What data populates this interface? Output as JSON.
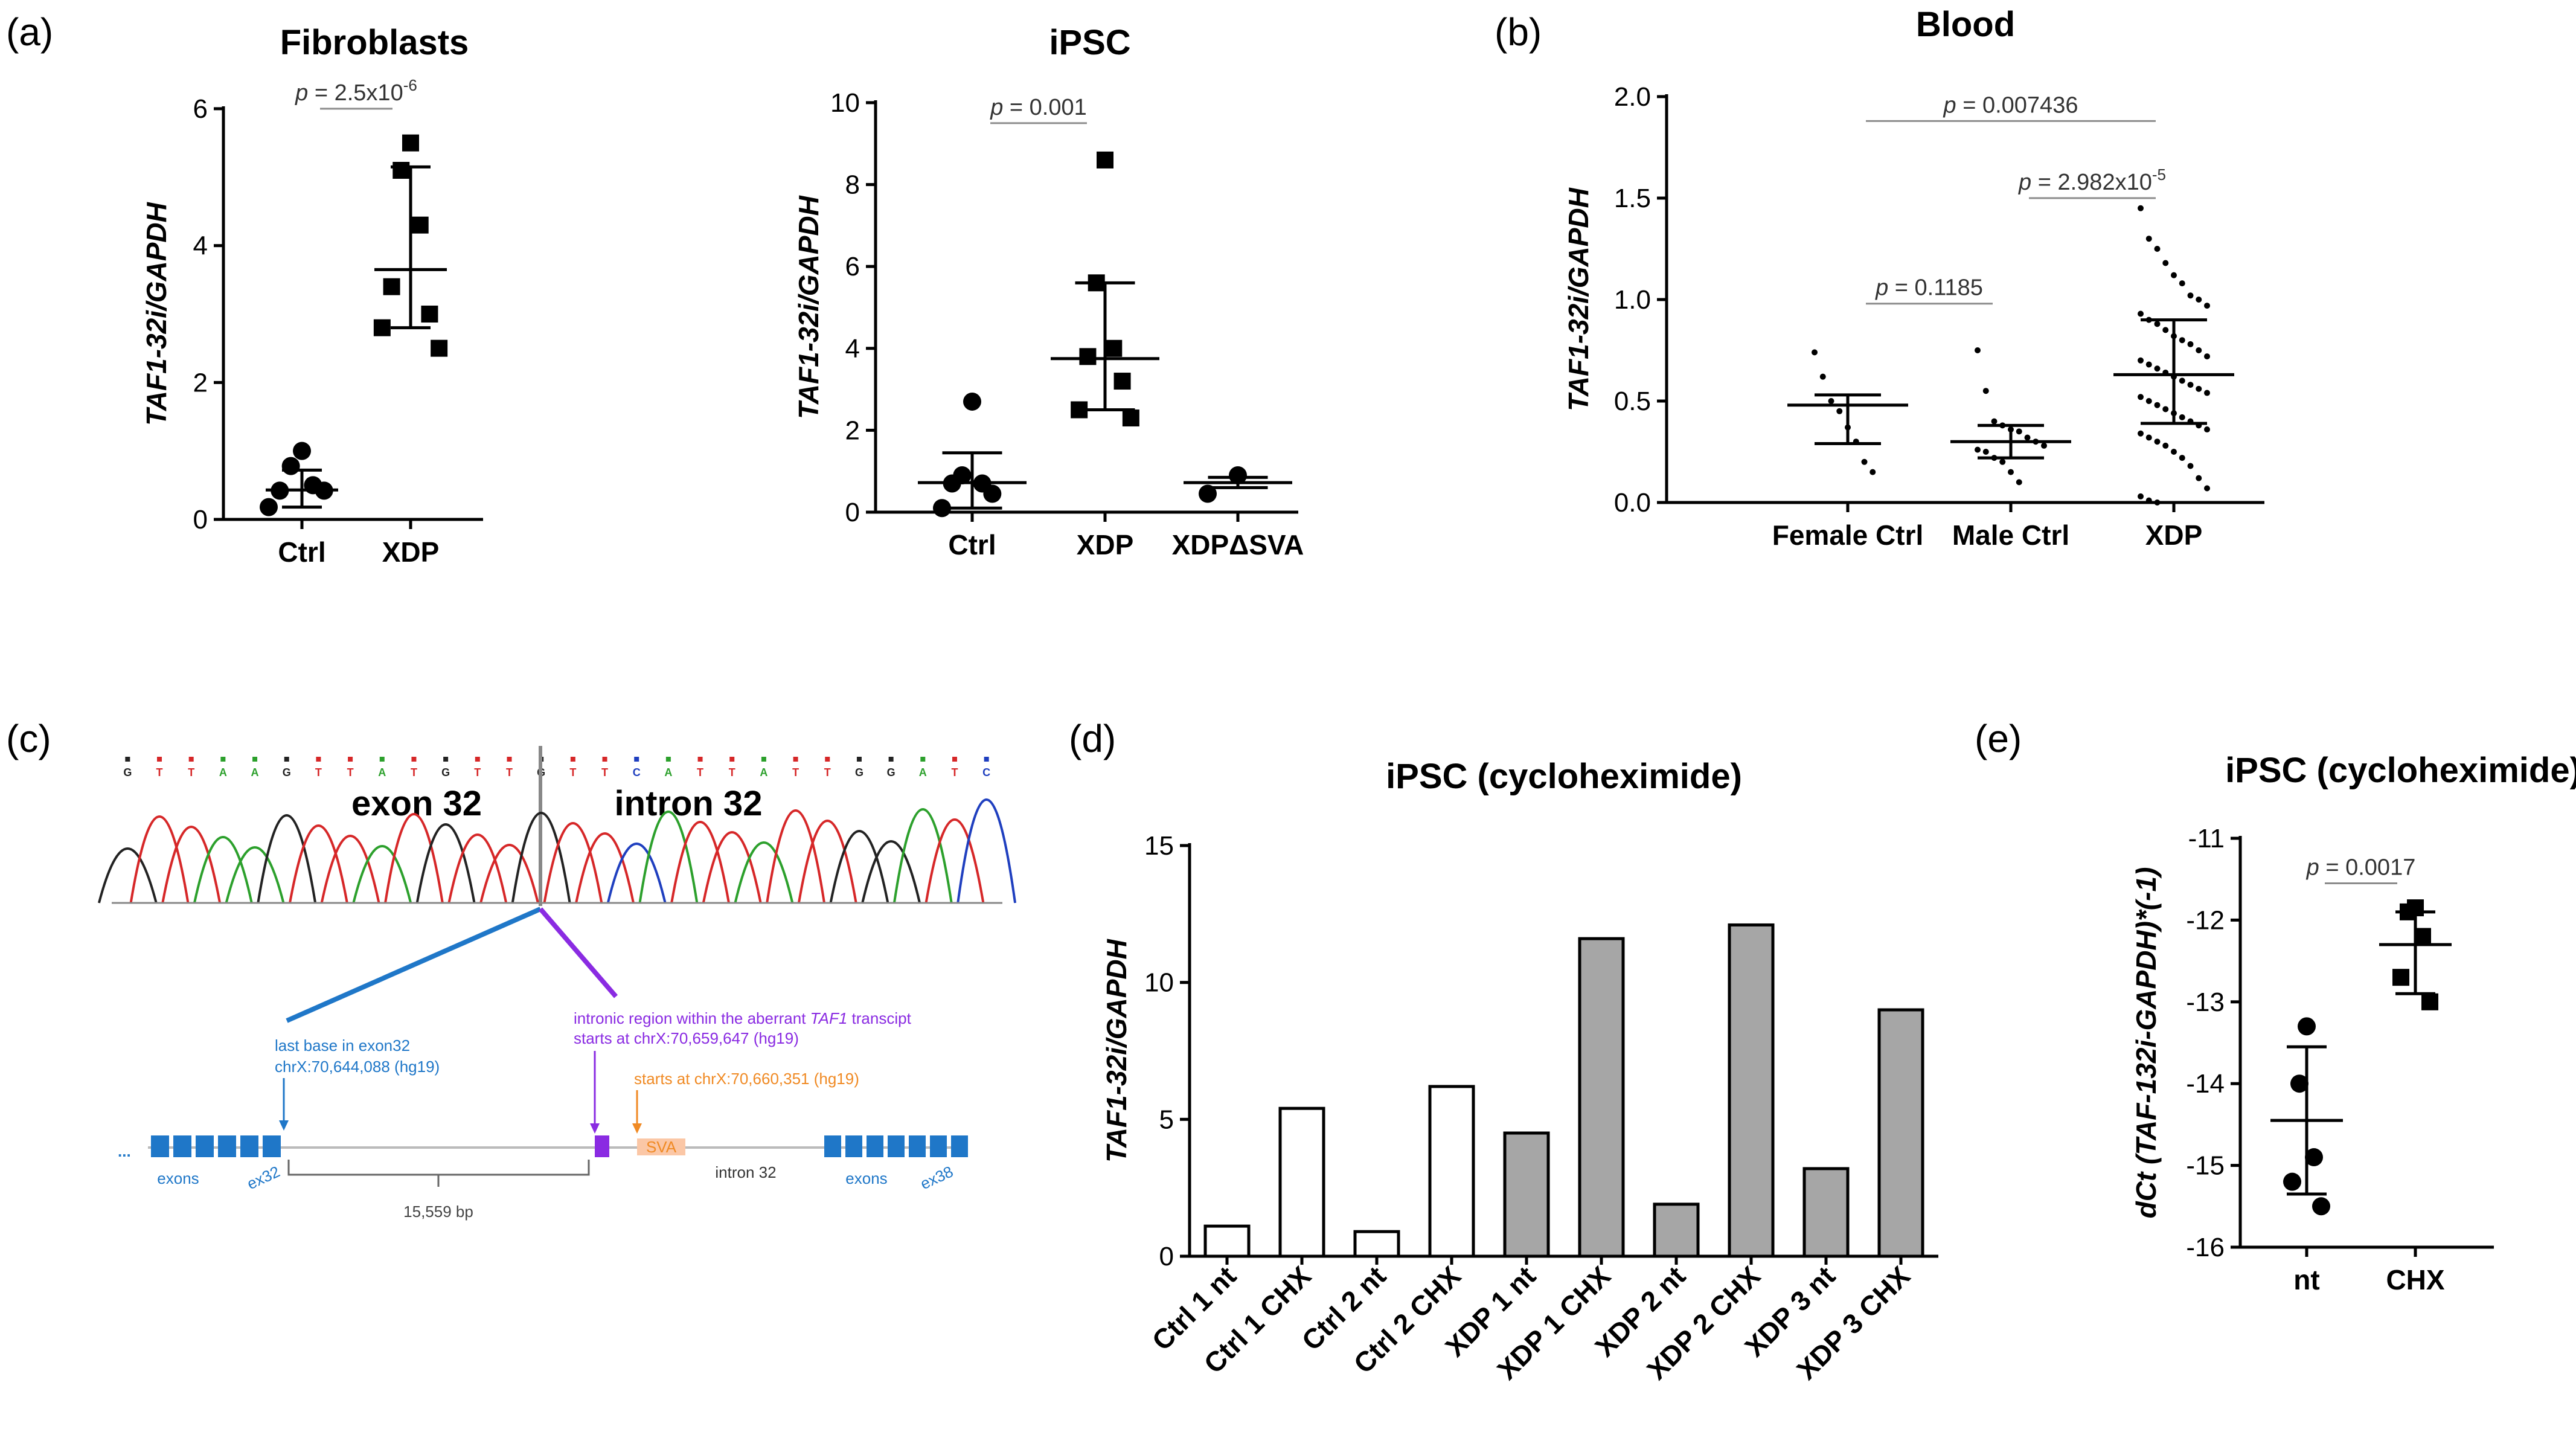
{
  "panels": {
    "a": {
      "label": "(a)"
    },
    "b": {
      "label": "(b)"
    },
    "c": {
      "label": "(c)",
      "exon_label": "exon 32",
      "intron_label": "intron 32",
      "bases": [
        "G",
        "T",
        "T",
        "A",
        "A",
        "G",
        "T",
        "T",
        "A",
        "T",
        "G",
        "T",
        "T",
        "G",
        "T",
        "T",
        "C",
        "A",
        "T",
        "T",
        "A",
        "T",
        "T",
        "G",
        "G",
        "A",
        "T",
        "C"
      ],
      "ann_blue_1": "last base in exon32",
      "ann_blue_2": "chrX:70,644,088 (hg19)",
      "ann_purple_1_a": "intronic region within the aberrant ",
      "ann_purple_1_b": "TAF1",
      "ann_purple_1_c": " transcipt",
      "ann_purple_2": "starts at chrX:70,659,647 (hg19)",
      "ann_orange": "starts at chrX:70,660,351 (hg19)",
      "dots": "...",
      "exons_left": "exons",
      "ex32": "ex32",
      "sva": "SVA",
      "intron": "intron 32",
      "exons_right": "exons",
      "ex38": "ex38",
      "bp": "15,559 bp"
    },
    "d": {
      "label": "(d)"
    },
    "e": {
      "label": "(e)"
    }
  },
  "chart_data": [
    {
      "id": "fibroblasts",
      "type": "scatter",
      "title": "Fibroblasts",
      "ylabel": "TAF1-32i/GAPDH",
      "ylim": [
        0,
        6
      ],
      "yticks": [
        0,
        2,
        4,
        6
      ],
      "categories": [
        "Ctrl",
        "XDP"
      ],
      "series": [
        {
          "name": "Ctrl",
          "marker": "circle",
          "values": [
            1.0,
            0.78,
            0.5,
            0.42,
            0.42,
            0.18
          ],
          "mean": 0.43,
          "sd_low": 0.18,
          "sd_high": 0.72
        },
        {
          "name": "XDP",
          "marker": "square",
          "values": [
            5.5,
            5.1,
            4.3,
            3.4,
            3.0,
            2.8,
            2.5
          ],
          "mean": 3.65,
          "sd_low": 2.8,
          "sd_high": 5.15
        }
      ],
      "annotations": [
        {
          "text_p": "p",
          "text": " = 2.5x10",
          "sup": "-6",
          "between": [
            "Ctrl",
            "XDP"
          ],
          "y": 6.0
        }
      ]
    },
    {
      "id": "ipsc",
      "type": "scatter",
      "title": "iPSC",
      "ylabel": "TAF1-32i/GAPDH",
      "ylim": [
        0,
        10
      ],
      "yticks": [
        0,
        2,
        4,
        6,
        8,
        10
      ],
      "categories": [
        "Ctrl",
        "XDP",
        "XDPΔSVA"
      ],
      "series": [
        {
          "name": "Ctrl",
          "marker": "circle",
          "values": [
            2.7,
            0.9,
            0.7,
            0.7,
            0.45,
            0.1
          ],
          "mean": 0.72,
          "sd_low": 0.1,
          "sd_high": 1.45
        },
        {
          "name": "XDP",
          "marker": "square",
          "values": [
            8.6,
            5.6,
            4.0,
            3.8,
            3.2,
            2.5,
            2.3
          ],
          "mean": 3.75,
          "sd_low": 2.5,
          "sd_high": 5.6
        },
        {
          "name": "XDPΔSVA",
          "marker": "circle",
          "values": [
            0.9,
            0.45
          ],
          "mean": 0.72,
          "sd_low": 0.6,
          "sd_high": 0.85
        }
      ],
      "annotations": [
        {
          "text_p": "p",
          "text": " = 0.001",
          "between": [
            "Ctrl",
            "XDP"
          ],
          "y": 9.5
        }
      ]
    },
    {
      "id": "blood",
      "type": "scatter",
      "title": "Blood",
      "ylabel": "TAF1-32i/GAPDH",
      "ylim": [
        0,
        2.0
      ],
      "yticks": [
        0.0,
        0.5,
        1.0,
        1.5,
        2.0
      ],
      "categories": [
        "Female Ctrl",
        "Male Ctrl",
        "XDP"
      ],
      "series": [
        {
          "name": "Female Ctrl",
          "marker": "dot",
          "values": [
            0.74,
            0.62,
            0.5,
            0.45,
            0.37,
            0.3,
            0.2,
            0.15
          ],
          "mean": 0.48,
          "sd_low": 0.29,
          "sd_high": 0.53
        },
        {
          "name": "Male Ctrl",
          "marker": "dot",
          "values": [
            0.75,
            0.55,
            0.4,
            0.38,
            0.36,
            0.35,
            0.32,
            0.3,
            0.28,
            0.26,
            0.25,
            0.22,
            0.2,
            0.15,
            0.1
          ],
          "mean": 0.3,
          "sd_low": 0.22,
          "sd_high": 0.38
        },
        {
          "name": "XDP",
          "marker": "dot",
          "values": [
            1.45,
            1.3,
            1.25,
            1.18,
            1.12,
            1.08,
            1.02,
            1.0,
            0.97,
            0.93,
            0.9,
            0.88,
            0.85,
            0.82,
            0.8,
            0.78,
            0.75,
            0.72,
            0.7,
            0.68,
            0.66,
            0.64,
            0.62,
            0.6,
            0.58,
            0.56,
            0.54,
            0.52,
            0.5,
            0.48,
            0.46,
            0.44,
            0.42,
            0.4,
            0.38,
            0.36,
            0.34,
            0.32,
            0.3,
            0.28,
            0.25,
            0.22,
            0.18,
            0.12,
            0.07,
            0.03,
            0.01,
            0.0
          ],
          "mean": 0.63,
          "sd_low": 0.39,
          "sd_high": 0.9
        }
      ],
      "annotations": [
        {
          "text_p": "p",
          "text": " = 0.007436",
          "between": [
            "Female Ctrl",
            "XDP"
          ],
          "y": 1.88
        },
        {
          "text_p": "p",
          "text": " = 2.982x10",
          "sup": "-5",
          "between": [
            "Male Ctrl",
            "XDP"
          ],
          "y": 1.5
        },
        {
          "text_p": "p",
          "text": " = 0.1185",
          "between": [
            "Female Ctrl",
            "Male Ctrl"
          ],
          "y": 0.98
        }
      ]
    },
    {
      "id": "cycloheximide-bar",
      "type": "bar",
      "title": "iPSC (cycloheximide)",
      "ylabel": "TAF1-32i/GAPDH",
      "ylim": [
        0,
        15
      ],
      "yticks": [
        0,
        5,
        10,
        15
      ],
      "categories": [
        "Ctrl 1 nt",
        "Ctrl 1 CHX",
        "Ctrl 2 nt",
        "Ctrl 2 CHX",
        "XDP 1 nt",
        "XDP 1 CHX",
        "XDP 2 nt",
        "XDP 2 CHX",
        "XDP 3 nt",
        "XDP 3 CHX"
      ],
      "values": [
        1.1,
        5.4,
        0.9,
        6.2,
        4.5,
        11.6,
        1.9,
        12.1,
        3.2,
        9.0
      ],
      "fill": [
        "#ffffff",
        "#ffffff",
        "#ffffff",
        "#ffffff",
        "#a6a6a6",
        "#a6a6a6",
        "#a6a6a6",
        "#a6a6a6",
        "#a6a6a6",
        "#a6a6a6"
      ]
    },
    {
      "id": "cycloheximide-dct",
      "type": "scatter",
      "title": "iPSC (cycloheximide)",
      "ylabel_pre": "dCt (",
      "ylabel_it": "TAF-132i-GAPDH",
      "ylabel_post": ")*(-1)",
      "ylim": [
        -16,
        -11
      ],
      "yticks": [
        -16,
        -15,
        -14,
        -13,
        -12,
        -11
      ],
      "categories": [
        "nt",
        "CHX"
      ],
      "series": [
        {
          "name": "nt",
          "marker": "circle",
          "values": [
            -13.3,
            -14.0,
            -14.9,
            -15.2,
            -15.5
          ],
          "mean": -14.45,
          "sd_low": -15.35,
          "sd_high": -13.55
        },
        {
          "name": "CHX",
          "marker": "square",
          "values": [
            -11.85,
            -11.9,
            -12.2,
            -12.7,
            -13.0
          ],
          "mean": -12.3,
          "sd_low": -12.9,
          "sd_high": -11.9
        }
      ],
      "annotations": [
        {
          "text_p": "p",
          "text": " = 0.0017",
          "between": [
            "nt",
            "CHX"
          ],
          "y": -11.55
        }
      ]
    }
  ],
  "colors": {
    "A": "#2ca02c",
    "C": "#1f3fbf",
    "G": "#222222",
    "T": "#d62728",
    "blue": "#1f77c8",
    "purple": "#8a2be2",
    "orange": "#f08a24"
  }
}
